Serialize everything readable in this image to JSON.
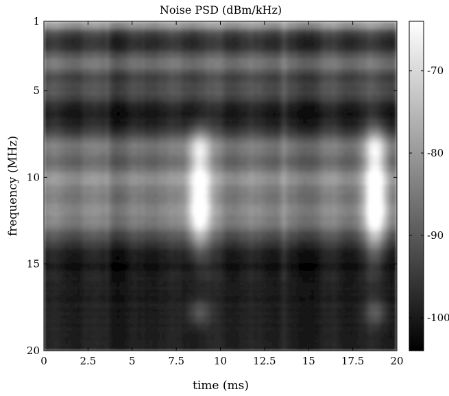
{
  "chart_data": {
    "type": "heatmap",
    "title": "Noise PSD (dBm/kHz)",
    "xlabel": "time (ms)",
    "ylabel": "frequency (MHz)",
    "xlim": [
      0,
      20
    ],
    "ylim": [
      1,
      20
    ],
    "y_reversed": true,
    "x_ticks": [
      "0",
      "2.5",
      "5",
      "7.5",
      "10",
      "12.5",
      "15",
      "17.5",
      "20"
    ],
    "x_tick_values": [
      0,
      2.5,
      5,
      7.5,
      10,
      12.5,
      15,
      17.5,
      20
    ],
    "y_ticks": [
      "1",
      "5",
      "10",
      "15",
      "20"
    ],
    "y_tick_values": [
      1,
      5,
      10,
      15,
      20
    ],
    "colormap": "gray",
    "colorbar": {
      "range": [
        -104,
        -64
      ],
      "ticks": [
        "-70",
        "-80",
        "-90",
        "-100"
      ],
      "tick_values": [
        -70,
        -80,
        -90,
        -100
      ]
    },
    "grid": false
  }
}
